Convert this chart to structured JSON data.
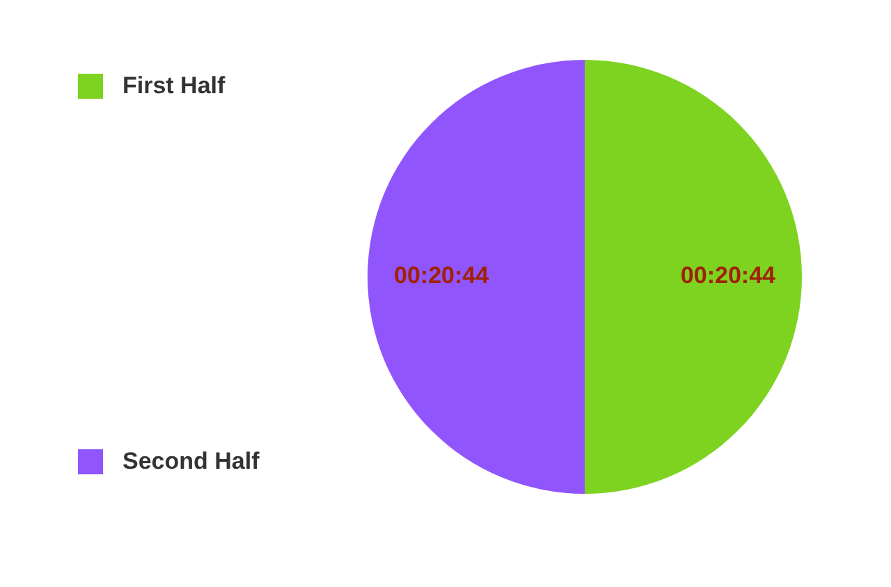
{
  "chart_data": {
    "type": "pie",
    "categories": [
      "First Half",
      "Second Half"
    ],
    "values": [
      1244,
      1244
    ],
    "value_labels": [
      "00:20:44",
      "00:20:44"
    ],
    "colors": [
      "#7ed321",
      "#9155fd"
    ],
    "legend": "left"
  }
}
